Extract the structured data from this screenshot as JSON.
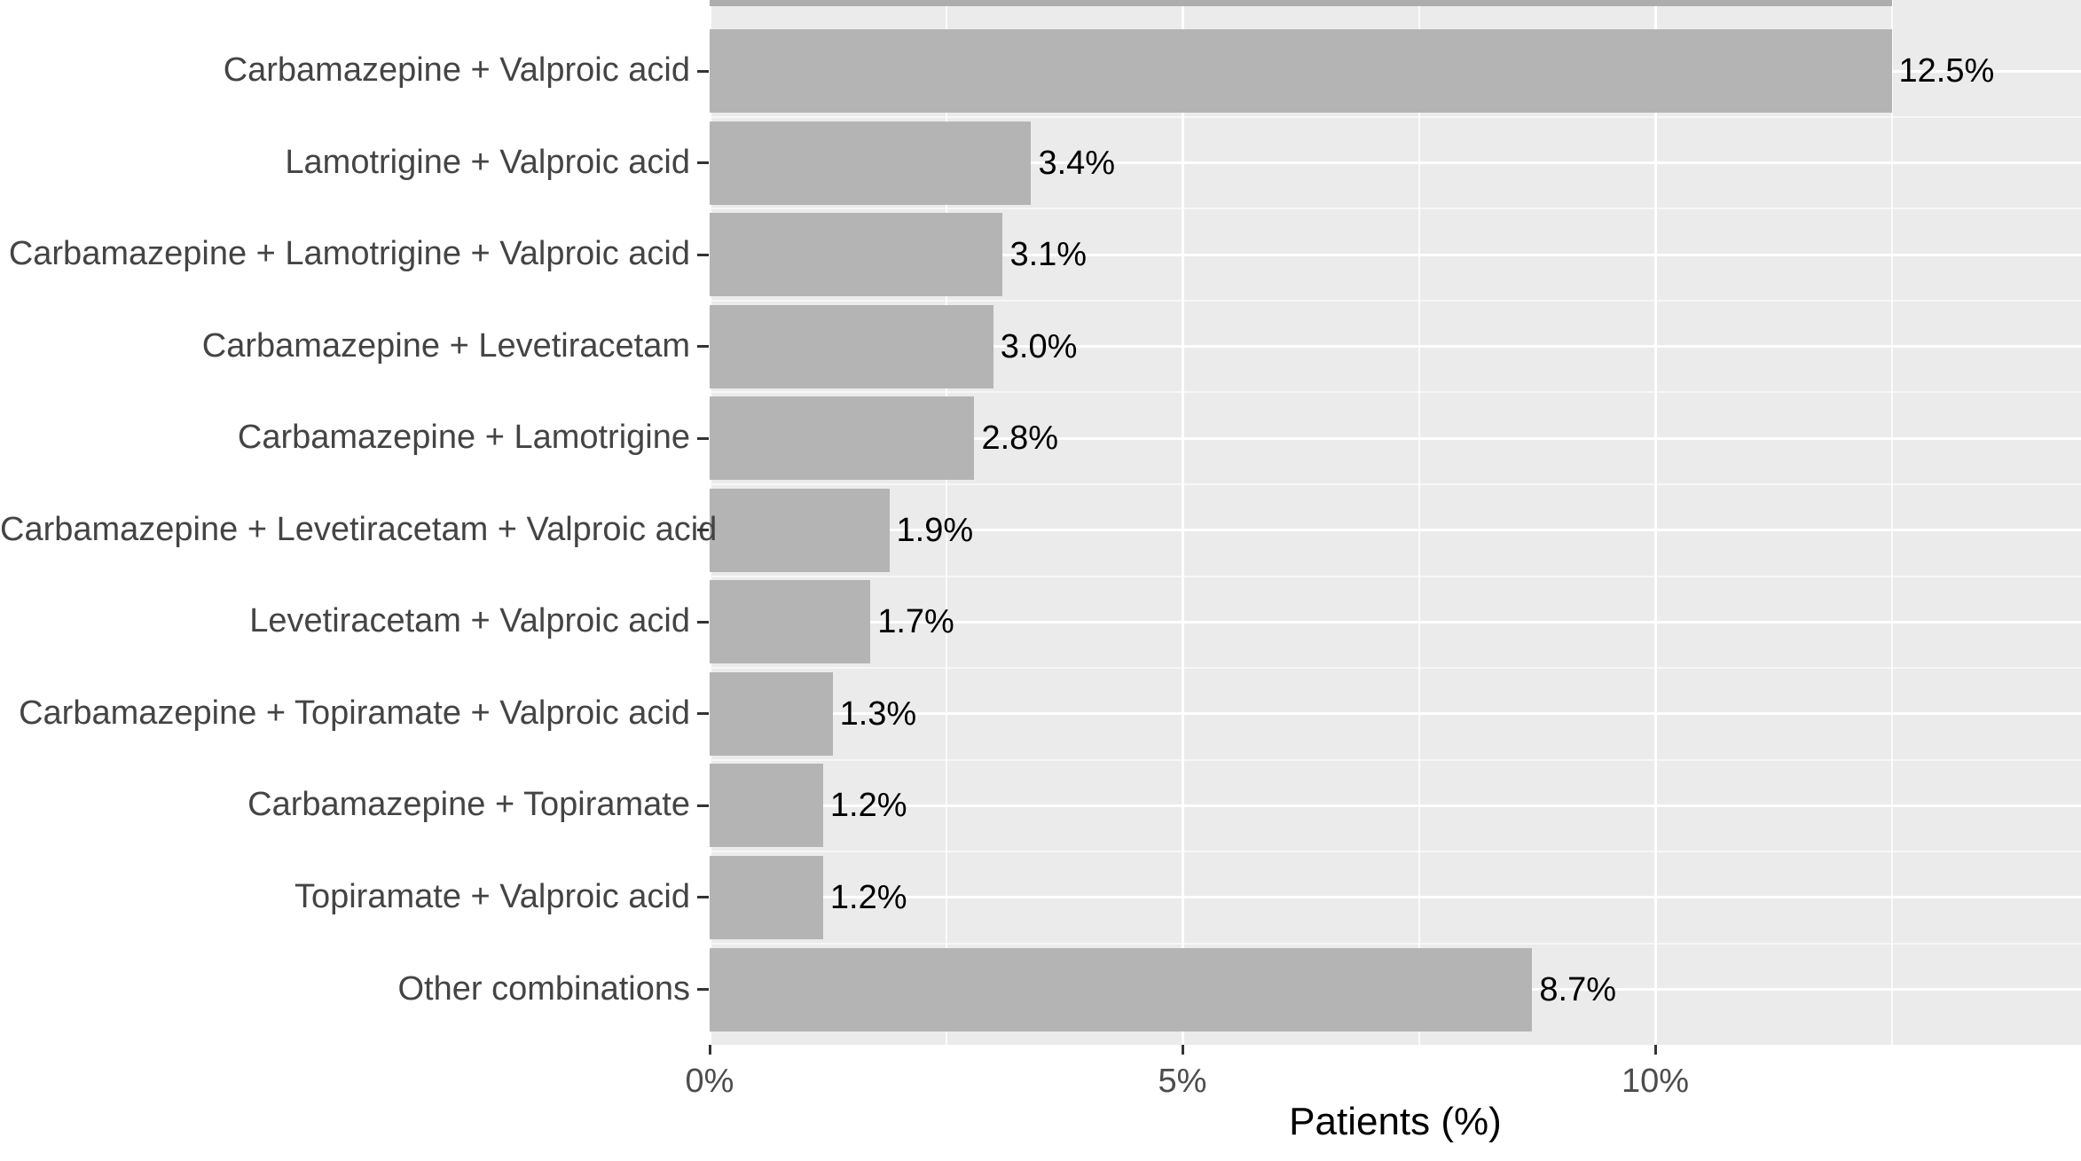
{
  "figure": {
    "kind": "horizontal bar chart, ggplot2 gray-panel style",
    "title": ""
  },
  "chart_data": {
    "type": "bar",
    "orientation": "horizontal",
    "title": "",
    "xlabel": "Patients (%)",
    "ylabel": "",
    "categories": [
      "Carbamazepine + Valproic acid",
      "Lamotrigine + Valproic acid",
      "Carbamazepine + Lamotrigine + Valproic acid",
      "Carbamazepine + Levetiracetam",
      "Carbamazepine + Lamotrigine",
      "Carbamazepine + Levetiracetam + Valproic acid",
      "Levetiracetam + Valproic acid",
      "Carbamazepine + Topiramate + Valproic acid",
      "Carbamazepine + Topiramate",
      "Topiramate + Valproic acid",
      "Other combinations"
    ],
    "values": [
      12.5,
      3.4,
      3.1,
      3.0,
      2.8,
      1.9,
      1.7,
      1.3,
      1.2,
      1.2,
      8.7
    ],
    "value_labels": [
      "12.5%",
      "3.4%",
      "3.1%",
      "3.0%",
      "2.8%",
      "1.9%",
      "1.7%",
      "1.3%",
      "1.2%",
      "1.2%",
      "8.7%"
    ],
    "x_axis": {
      "label": "Patients (%)",
      "major_ticks": [
        {
          "value": 0,
          "label": "0%"
        },
        {
          "value": 5,
          "label": "5%"
        },
        {
          "value": 10,
          "label": "10%"
        }
      ],
      "minor_tick_values": [
        2.5,
        7.5,
        12.5
      ],
      "range": [
        0,
        14.5
      ]
    },
    "legend": "none",
    "grid": {
      "major": "white",
      "minor": "white",
      "panel_background": "#ebebeb"
    }
  },
  "colors": {
    "bar": "#b4b4b4",
    "panel_bg": "#ebebeb",
    "grid": "#ffffff",
    "axis_text": "#4d4d4d",
    "category_text": "#444444",
    "value_text": "#000000",
    "axis_title_text": "#000000",
    "tick_mark": "#333333",
    "background": "#ffffff",
    "top_crop_artifact": "#adadad"
  }
}
